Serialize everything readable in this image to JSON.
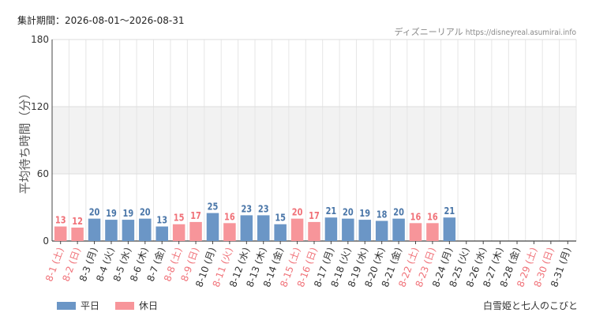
{
  "header": {
    "period": "集計期間：2026-08-01〜2026-08-31",
    "credit_site": "ディズニーリアル",
    "credit_url": "https://disneyreal.asumirai.info"
  },
  "attraction_name": "白雪姫と七人のこびと",
  "colors": {
    "weekday": "#6b96c6",
    "holiday": "#f7959a",
    "weekday_value": "#4a76a8",
    "holiday_value": "#f07178",
    "weekday_label": "#333333",
    "holiday_label": "#f07178",
    "band": "#f2f2f2",
    "grid": "#e6e6e6",
    "axis": "#444444"
  },
  "chart_data": {
    "type": "bar",
    "ylabel": "平均待ち時間（分）",
    "ylim": [
      0,
      180
    ],
    "yticks": [
      0,
      60,
      120,
      180
    ],
    "shaded_bands": [
      [
        60,
        120
      ]
    ],
    "legend": [
      {
        "name": "平日",
        "color": "#6b96c6"
      },
      {
        "name": "休日",
        "color": "#f7959a"
      }
    ],
    "legend_position": "bottom-left",
    "categories": [
      "8-1 (土)",
      "8-2 (日)",
      "8-3 (月)",
      "8-4 (火)",
      "8-5 (水)",
      "8-6 (木)",
      "8-7 (金)",
      "8-8 (土)",
      "8-9 (日)",
      "8-10 (月)",
      "8-11 (火)",
      "8-12 (水)",
      "8-13 (木)",
      "8-14 (金)",
      "8-15 (土)",
      "8-16 (日)",
      "8-17 (月)",
      "8-18 (火)",
      "8-19 (水)",
      "8-20 (木)",
      "8-21 (金)",
      "8-22 (土)",
      "8-23 (日)",
      "8-24 (月)",
      "8-25 (火)",
      "8-26 (水)",
      "8-27 (木)",
      "8-28 (金)",
      "8-29 (土)",
      "8-30 (日)",
      "8-31 (月)"
    ],
    "values": [
      13,
      12,
      20,
      19,
      19,
      20,
      13,
      15,
      17,
      25,
      16,
      23,
      23,
      15,
      20,
      17,
      21,
      20,
      19,
      18,
      20,
      16,
      16,
      21,
      null,
      null,
      null,
      null,
      null,
      null,
      null
    ],
    "day_types": [
      "holiday",
      "holiday",
      "weekday",
      "weekday",
      "weekday",
      "weekday",
      "weekday",
      "holiday",
      "holiday",
      "weekday",
      "holiday",
      "weekday",
      "weekday",
      "weekday",
      "holiday",
      "holiday",
      "weekday",
      "weekday",
      "weekday",
      "weekday",
      "weekday",
      "holiday",
      "holiday",
      "weekday",
      "weekday",
      "weekday",
      "weekday",
      "weekday",
      "holiday",
      "holiday",
      "weekday"
    ]
  }
}
